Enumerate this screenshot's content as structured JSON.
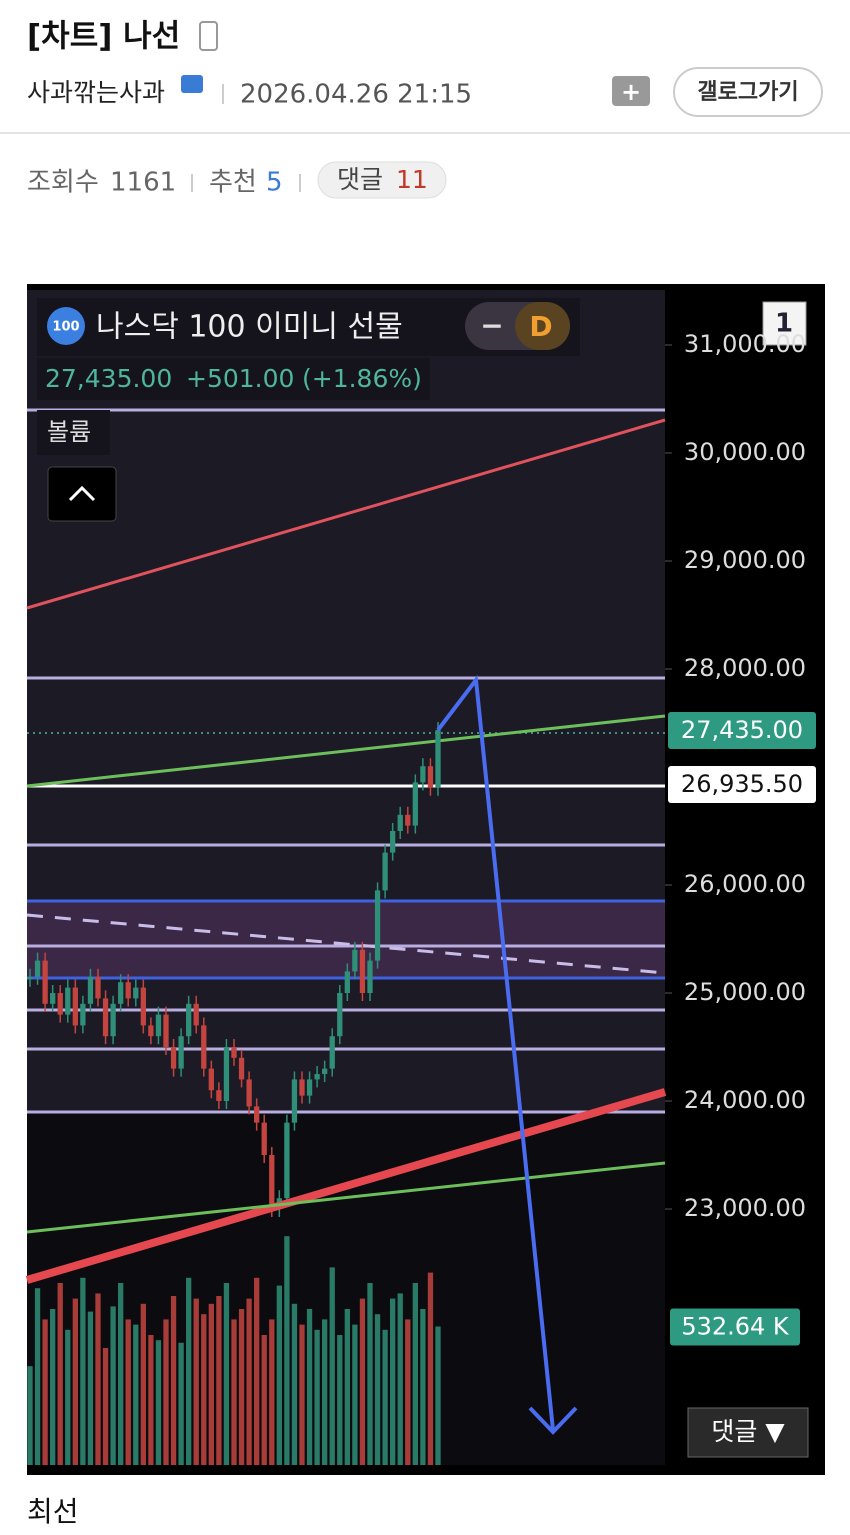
{
  "header": {
    "title": "[차트] 나선",
    "author": "사과깎는사과",
    "datetime": "2026.04.26 21:15",
    "gallery_button": "갤로그가기"
  },
  "stats": {
    "views_label": "조회수",
    "views": 1161,
    "recommend_label": "추천",
    "recommend": 5,
    "comments_label": "댓글",
    "comments": 11
  },
  "chart_data": {
    "type": "candlestick",
    "title": "나스닥 100 이미니 선물",
    "badge": "100",
    "interval": "D",
    "last_price": "27,435.00",
    "change": "+501.00",
    "change_pct": "(+1.86%)",
    "volume_label": "볼륨",
    "pane_number": "1",
    "closes": [
      25150,
      25300,
      24900,
      25000,
      24800,
      25050,
      24700,
      24900,
      25150,
      24950,
      24600,
      24900,
      25100,
      24950,
      25050,
      24700,
      24600,
      24800,
      24500,
      24300,
      24600,
      24900,
      24700,
      24300,
      24100,
      24000,
      24500,
      24400,
      24200,
      23950,
      23800,
      23500,
      23000,
      23100,
      23800,
      24200,
      24050,
      24200,
      24250,
      24300,
      24600,
      25000,
      25200,
      25400,
      25000,
      25300,
      25950,
      26300,
      26500,
      26650,
      26550,
      26950,
      27100,
      26900,
      27435
    ],
    "volume": {
      "values": [
        380,
        680,
        560,
        600,
        700,
        520,
        640,
        720,
        590,
        660,
        450,
        610,
        700,
        560,
        540,
        620,
        500,
        480,
        560,
        650,
        470,
        720,
        640,
        580,
        620,
        650,
        700,
        560,
        600,
        640,
        720,
        500,
        560,
        690,
        880,
        620,
        540,
        600,
        520,
        560,
        760,
        500,
        600,
        540,
        640,
        700,
        580,
        520,
        640,
        660,
        560,
        700,
        600,
        740,
        532.64
      ],
      "last_label": "532.64 K"
    },
    "ylim": [
      20630,
      31509
    ],
    "yticks": [
      {
        "value": 31000,
        "label": "31,000.00"
      },
      {
        "value": 30000,
        "label": "30,000.00"
      },
      {
        "value": 29000,
        "label": "29,000.00"
      },
      {
        "value": 28000,
        "label": "28,000.00"
      },
      {
        "value": 26000,
        "label": "26,000.00"
      },
      {
        "value": 25000,
        "label": "25,000.00"
      },
      {
        "value": 24000,
        "label": "24,000.00"
      },
      {
        "value": 23000,
        "label": "23,000.00"
      }
    ],
    "price_tags": [
      {
        "value": 27435,
        "label": "27,435.00"
      },
      {
        "value": 26935.5,
        "label": "26,935.50"
      }
    ]
  },
  "footer": {
    "comments_button": "댓글 ▼",
    "text": "최선"
  }
}
